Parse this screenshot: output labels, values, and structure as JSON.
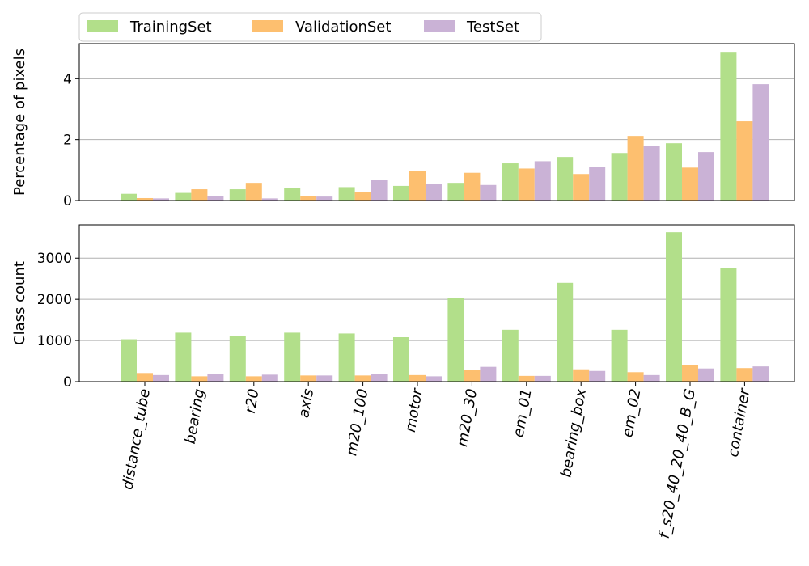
{
  "chart_data": [
    {
      "type": "bar",
      "categories": [
        "distance_tube",
        "bearing",
        "r20",
        "axis",
        "m20_100",
        "motor",
        "m20_30",
        "em_01",
        "bearing_box",
        "em_02",
        "f_s20_40_20_40_B_G",
        "container"
      ],
      "series": [
        {
          "name": "TrainingSet",
          "color": "#b2df8a",
          "values": [
            0.22,
            0.25,
            0.37,
            0.42,
            0.44,
            0.48,
            0.58,
            1.22,
            1.43,
            1.56,
            1.88,
            4.88
          ]
        },
        {
          "name": "ValidationSet",
          "color": "#fdbf6f",
          "values": [
            0.08,
            0.37,
            0.58,
            0.15,
            0.29,
            0.98,
            0.91,
            1.05,
            0.87,
            2.12,
            1.08,
            2.6
          ]
        },
        {
          "name": "TestSet",
          "color": "#cab2d6",
          "values": [
            0.07,
            0.15,
            0.07,
            0.13,
            0.69,
            0.55,
            0.51,
            1.29,
            1.09,
            1.8,
            1.59,
            3.82
          ]
        }
      ],
      "ylabel": "Percentage of pixels",
      "ylim": [
        0,
        5.15
      ],
      "yticks": [
        0,
        2,
        4
      ],
      "grid": "y",
      "legend": "top-left"
    },
    {
      "type": "bar",
      "categories": [
        "distance_tube",
        "bearing",
        "r20",
        "axis",
        "m20_100",
        "motor",
        "m20_30",
        "em_01",
        "bearing_box",
        "em_02",
        "f_s20_40_20_40_B_G",
        "container"
      ],
      "series": [
        {
          "name": "TrainingSet",
          "color": "#b2df8a",
          "values": [
            1030,
            1190,
            1110,
            1190,
            1170,
            1080,
            2030,
            1260,
            2400,
            1260,
            3630,
            2760
          ]
        },
        {
          "name": "ValidationSet",
          "color": "#fdbf6f",
          "values": [
            210,
            130,
            130,
            150,
            150,
            160,
            290,
            140,
            300,
            230,
            410,
            330
          ]
        },
        {
          "name": "TestSet",
          "color": "#cab2d6",
          "values": [
            160,
            190,
            170,
            150,
            190,
            130,
            360,
            140,
            260,
            160,
            320,
            370
          ]
        }
      ],
      "ylabel": "Class count",
      "ylim": [
        0,
        3810
      ],
      "yticks": [
        0,
        1000,
        2000,
        3000
      ],
      "grid": "y"
    }
  ]
}
